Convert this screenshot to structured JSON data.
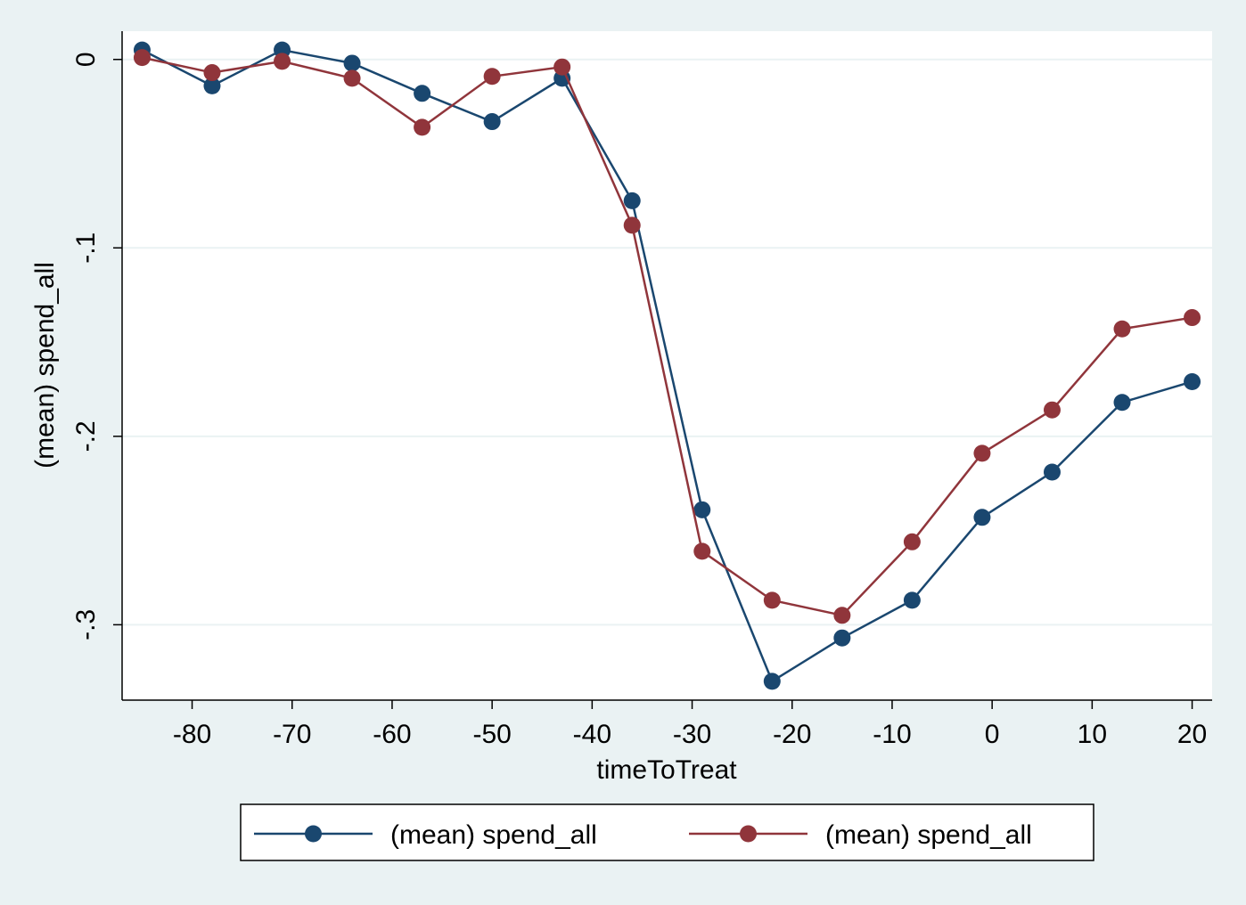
{
  "chart_data": {
    "type": "line",
    "xlabel": "timeToTreat",
    "ylabel": "(mean) spend_all",
    "xlim": [
      -87,
      22
    ],
    "ylim": [
      -0.34,
      0.015
    ],
    "xticks": [
      -80,
      -70,
      -60,
      -50,
      -40,
      -30,
      -20,
      -10,
      0,
      10,
      20
    ],
    "yticks": [
      0,
      -0.1,
      -0.2,
      -0.3
    ],
    "ytick_labels": [
      "0",
      "-.1",
      "-.2",
      "-.3"
    ],
    "grid": true,
    "legend_position": "bottom",
    "x": [
      -85,
      -78,
      -71,
      -64,
      -57,
      -50,
      -43,
      -36,
      -29,
      -22,
      -15,
      -8,
      -1,
      6,
      13,
      20
    ],
    "series": [
      {
        "name": "(mean) spend_all",
        "color": "#1a476f",
        "values": [
          0.005,
          -0.014,
          0.005,
          -0.002,
          -0.018,
          -0.033,
          -0.01,
          -0.075,
          -0.239,
          -0.33,
          -0.307,
          -0.287,
          -0.243,
          -0.219,
          -0.182,
          -0.171
        ]
      },
      {
        "name": "(mean) spend_all",
        "color": "#90353b",
        "values": [
          0.001,
          -0.007,
          -0.001,
          -0.01,
          -0.036,
          -0.009,
          -0.004,
          -0.088,
          -0.261,
          -0.287,
          -0.295,
          -0.256,
          -0.209,
          -0.186,
          -0.143,
          -0.137
        ]
      }
    ]
  },
  "colors": {
    "background": "#eaf2f3",
    "plot_background": "#ffffff",
    "grid": "#eaf2f3"
  }
}
